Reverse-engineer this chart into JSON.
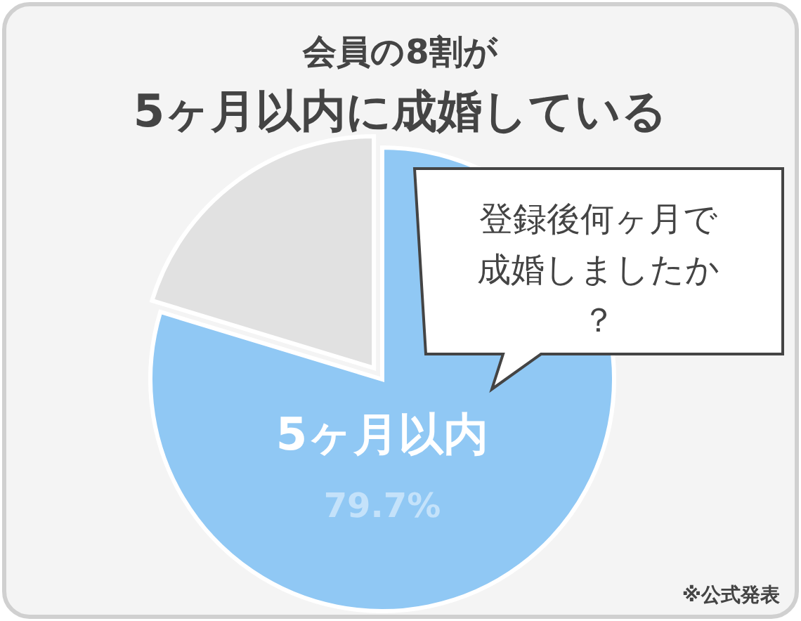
{
  "chart_data": {
    "type": "pie",
    "title": "会員の8割が",
    "subtitle": "5ヶ月以内に成婚している",
    "categories": [
      "5ヶ月以内",
      null
    ],
    "values": [
      79.7,
      20.3
    ],
    "colors": [
      "#90c8f4",
      "#e1e1e1"
    ],
    "value_labels": [
      "79.7%",
      null
    ],
    "annotations": [
      "登録後何ヶ月で成婚しましたか？",
      "※公式発表"
    ]
  }
}
